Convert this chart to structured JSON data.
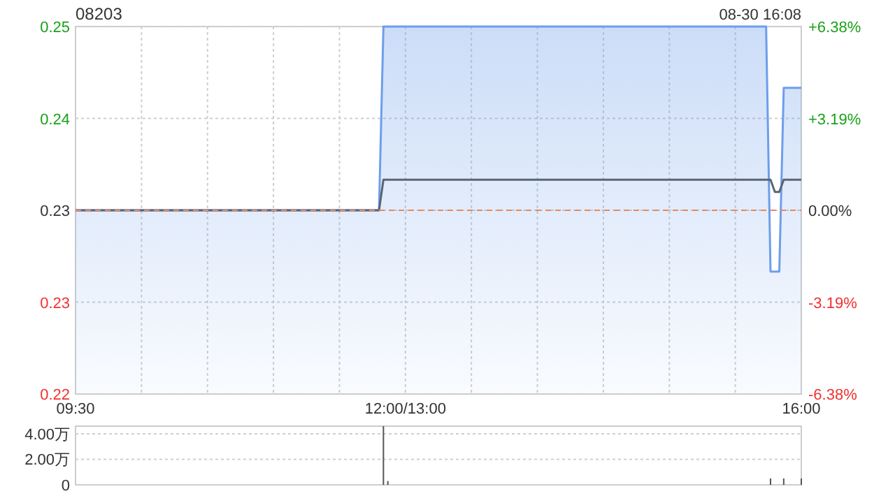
{
  "chart_data": [
    {
      "type": "area",
      "title": "08203",
      "annotations": [
        "08-30 16:08"
      ],
      "categories": [
        "09:30",
        null,
        null,
        null,
        null,
        null,
        null,
        null,
        null,
        null,
        null,
        null,
        null,
        null,
        null,
        null,
        null,
        null,
        null,
        null,
        null,
        null,
        null,
        null,
        null,
        null,
        null,
        null,
        null,
        null,
        null,
        null,
        null,
        null,
        null,
        null,
        null,
        null,
        null,
        null,
        null,
        null,
        null,
        null,
        null,
        null,
        null,
        null,
        null,
        null,
        null,
        null,
        null,
        null,
        null,
        null,
        null,
        null,
        null,
        null,
        null,
        null,
        null,
        null,
        null,
        null,
        null,
        null,
        null,
        null,
        null,
        null,
        null,
        null,
        null,
        "12:00/13:00",
        null,
        null,
        null,
        null,
        null,
        null,
        null,
        null,
        null,
        null,
        null,
        null,
        null,
        null,
        null,
        null,
        null,
        null,
        null,
        null,
        null,
        null,
        null,
        null,
        null,
        null,
        null,
        null,
        null,
        null,
        null,
        null,
        null,
        null,
        null,
        null,
        null,
        null,
        null,
        null,
        null,
        null,
        null,
        null,
        null,
        null,
        null,
        null,
        null,
        null,
        null,
        null,
        null,
        null,
        null,
        null,
        null,
        null,
        null,
        null,
        null,
        null,
        null,
        null,
        null,
        null,
        null,
        null,
        null,
        null,
        null,
        null,
        null,
        null,
        null,
        null,
        null,
        null,
        null,
        null,
        null,
        null,
        null,
        null,
        null,
        null,
        null,
        null,
        null,
        "16:00"
      ],
      "series": [
        {
          "color": "#6d9eeb",
          "values": [
            0.235,
            0.235,
            0.235,
            0.235,
            0.235,
            0.235,
            0.235,
            0.235,
            0.235,
            0.235,
            0.235,
            0.235,
            0.235,
            0.235,
            0.235,
            0.235,
            0.235,
            0.235,
            0.235,
            0.235,
            0.235,
            0.235,
            0.235,
            0.235,
            0.235,
            0.235,
            0.235,
            0.235,
            0.235,
            0.235,
            0.235,
            0.235,
            0.235,
            0.235,
            0.235,
            0.235,
            0.235,
            0.235,
            0.235,
            0.235,
            0.235,
            0.235,
            0.235,
            0.235,
            0.235,
            0.235,
            0.235,
            0.235,
            0.235,
            0.235,
            0.235,
            0.235,
            0.235,
            0.235,
            0.235,
            0.235,
            0.235,
            0.235,
            0.235,
            0.235,
            0.235,
            0.235,
            0.235,
            0.235,
            0.235,
            0.235,
            0.235,
            0.235,
            0.235,
            0.235,
            0.25,
            0.25,
            0.25,
            0.25,
            0.25,
            0.25,
            0.25,
            0.25,
            0.25,
            0.25,
            0.25,
            0.25,
            0.25,
            0.25,
            0.25,
            0.25,
            0.25,
            0.25,
            0.25,
            0.25,
            0.25,
            0.25,
            0.25,
            0.25,
            0.25,
            0.25,
            0.25,
            0.25,
            0.25,
            0.25,
            0.25,
            0.25,
            0.25,
            0.25,
            0.25,
            0.25,
            0.25,
            0.25,
            0.25,
            0.25,
            0.25,
            0.25,
            0.25,
            0.25,
            0.25,
            0.25,
            0.25,
            0.25,
            0.25,
            0.25,
            0.25,
            0.25,
            0.25,
            0.25,
            0.25,
            0.25,
            0.25,
            0.25,
            0.25,
            0.25,
            0.25,
            0.25,
            0.25,
            0.25,
            0.25,
            0.25,
            0.25,
            0.25,
            0.25,
            0.25,
            0.25,
            0.25,
            0.25,
            0.25,
            0.25,
            0.25,
            0.25,
            0.25,
            0.25,
            0.25,
            0.25,
            0.25,
            0.25,
            0.25,
            0.25,
            0.25,
            0.25,
            0.25,
            0.23,
            0.23,
            0.23,
            0.245,
            0.245,
            0.245,
            0.245,
            0.245
          ]
        },
        {
          "type": "line",
          "color": "#5b6670",
          "values": [
            0.235,
            0.235,
            0.235,
            0.235,
            0.235,
            0.235,
            0.235,
            0.235,
            0.235,
            0.235,
            0.235,
            0.235,
            0.235,
            0.235,
            0.235,
            0.235,
            0.235,
            0.235,
            0.235,
            0.235,
            0.235,
            0.235,
            0.235,
            0.235,
            0.235,
            0.235,
            0.235,
            0.235,
            0.235,
            0.235,
            0.235,
            0.235,
            0.235,
            0.235,
            0.235,
            0.235,
            0.235,
            0.235,
            0.235,
            0.235,
            0.235,
            0.235,
            0.235,
            0.235,
            0.235,
            0.235,
            0.235,
            0.235,
            0.235,
            0.235,
            0.235,
            0.235,
            0.235,
            0.235,
            0.235,
            0.235,
            0.235,
            0.235,
            0.235,
            0.235,
            0.235,
            0.235,
            0.235,
            0.235,
            0.235,
            0.235,
            0.235,
            0.235,
            0.235,
            0.235,
            0.2375,
            0.2375,
            0.2375,
            0.2375,
            0.2375,
            0.2375,
            0.2375,
            0.2375,
            0.2375,
            0.2375,
            0.2375,
            0.2375,
            0.2375,
            0.2375,
            0.2375,
            0.2375,
            0.2375,
            0.2375,
            0.2375,
            0.2375,
            0.2375,
            0.2375,
            0.2375,
            0.2375,
            0.2375,
            0.2375,
            0.2375,
            0.2375,
            0.2375,
            0.2375,
            0.2375,
            0.2375,
            0.2375,
            0.2375,
            0.2375,
            0.2375,
            0.2375,
            0.2375,
            0.2375,
            0.2375,
            0.2375,
            0.2375,
            0.2375,
            0.2375,
            0.2375,
            0.2375,
            0.2375,
            0.2375,
            0.2375,
            0.2375,
            0.2375,
            0.2375,
            0.2375,
            0.2375,
            0.2375,
            0.2375,
            0.2375,
            0.2375,
            0.2375,
            0.2375,
            0.2375,
            0.2375,
            0.2375,
            0.2375,
            0.2375,
            0.2375,
            0.2375,
            0.2375,
            0.2375,
            0.2375,
            0.2375,
            0.2375,
            0.2375,
            0.2375,
            0.2375,
            0.2375,
            0.2375,
            0.2375,
            0.2375,
            0.2375,
            0.2375,
            0.2375,
            0.2375,
            0.2375,
            0.2375,
            0.2375,
            0.2375,
            0.2375,
            0.2375,
            0.2365,
            0.2365,
            0.2375,
            0.2375,
            0.2375,
            0.2375,
            0.2375
          ]
        }
      ],
      "ylim": [
        0.22,
        0.25
      ],
      "yticks": [
        {
          "value": 0.22,
          "label": "0.22"
        },
        {
          "value": 0.2275,
          "label": "0.23"
        },
        {
          "value": 0.235,
          "label": "0.23"
        },
        {
          "value": 0.2425,
          "label": "0.24"
        },
        {
          "value": 0.25,
          "label": "0.25"
        }
      ],
      "y2lim": [
        -6.38,
        6.38
      ],
      "y2ticks": [
        {
          "value": -6.38,
          "label": "-6.38%"
        },
        {
          "value": -3.19,
          "label": "-3.19%"
        },
        {
          "value": 0,
          "label": "0.00%"
        },
        {
          "value": 3.19,
          "label": "+3.19%"
        },
        {
          "value": 6.38,
          "label": "+6.38%"
        }
      ],
      "ref_lines": [
        {
          "axis": "y",
          "value": 0.235,
          "color": "#e8895b",
          "line_style": "dashed"
        }
      ],
      "grid": true
    },
    {
      "type": "bar",
      "color": "#555555",
      "categories": [
        null,
        null,
        null,
        null,
        null,
        null,
        null,
        null,
        null,
        null,
        null,
        null,
        null,
        null,
        null,
        null,
        null,
        null,
        null,
        null,
        null,
        null,
        null,
        null,
        null,
        null,
        null,
        null,
        null,
        null,
        null,
        null,
        null,
        null,
        null,
        null,
        null,
        null,
        null,
        null,
        null,
        null,
        null,
        null,
        null,
        null,
        null,
        null,
        null,
        null,
        null,
        null,
        null,
        null,
        null,
        null,
        null,
        null,
        null,
        null,
        null,
        null,
        null,
        null,
        null,
        null,
        null,
        null,
        null,
        null,
        null,
        null,
        null,
        null,
        null,
        null,
        null,
        null,
        null,
        null,
        null,
        null,
        null,
        null,
        null,
        null,
        null,
        null,
        null,
        null,
        null,
        null,
        null,
        null,
        null,
        null,
        null,
        null,
        null,
        null,
        null,
        null,
        null,
        null,
        null,
        null,
        null,
        null,
        null,
        null,
        null,
        null,
        null,
        null,
        null,
        null,
        null,
        null,
        null,
        null,
        null,
        null,
        null,
        null,
        null,
        null,
        null,
        null,
        null,
        null,
        null,
        null,
        null,
        null,
        null,
        null,
        null,
        null,
        null,
        null,
        null,
        null,
        null,
        null,
        null,
        null,
        null,
        null,
        null,
        null,
        null,
        null,
        null,
        null,
        null,
        null,
        null,
        null,
        null,
        null,
        null,
        null,
        null,
        null,
        null,
        null
      ],
      "values": [
        null,
        null,
        null,
        null,
        null,
        null,
        null,
        null,
        null,
        null,
        null,
        null,
        null,
        null,
        null,
        null,
        null,
        null,
        null,
        null,
        null,
        null,
        null,
        null,
        null,
        null,
        null,
        null,
        null,
        null,
        null,
        null,
        null,
        null,
        null,
        null,
        null,
        null,
        null,
        null,
        null,
        null,
        null,
        null,
        null,
        null,
        null,
        null,
        null,
        null,
        null,
        null,
        null,
        null,
        null,
        null,
        null,
        null,
        null,
        null,
        null,
        null,
        null,
        null,
        null,
        null,
        null,
        null,
        null,
        null,
        4.6,
        0.3,
        null,
        null,
        null,
        null,
        null,
        null,
        null,
        null,
        null,
        null,
        null,
        null,
        null,
        null,
        null,
        null,
        null,
        null,
        null,
        null,
        null,
        null,
        null,
        null,
        null,
        null,
        null,
        null,
        null,
        null,
        null,
        null,
        null,
        null,
        null,
        null,
        null,
        null,
        null,
        null,
        null,
        null,
        null,
        null,
        null,
        null,
        null,
        null,
        null,
        null,
        null,
        null,
        null,
        null,
        null,
        null,
        null,
        null,
        null,
        null,
        null,
        null,
        null,
        null,
        null,
        null,
        null,
        null,
        null,
        null,
        null,
        null,
        null,
        null,
        null,
        null,
        null,
        null,
        null,
        null,
        null,
        null,
        null,
        null,
        null,
        null,
        0.5,
        null,
        null,
        0.5,
        null,
        null,
        null,
        0.5
      ],
      "ylim": [
        0,
        4.6
      ],
      "yticks": [
        0,
        {
          "value": 2,
          "label": "2.00万"
        },
        {
          "value": 4,
          "label": "4.00万"
        }
      ],
      "grid": "y"
    }
  ]
}
